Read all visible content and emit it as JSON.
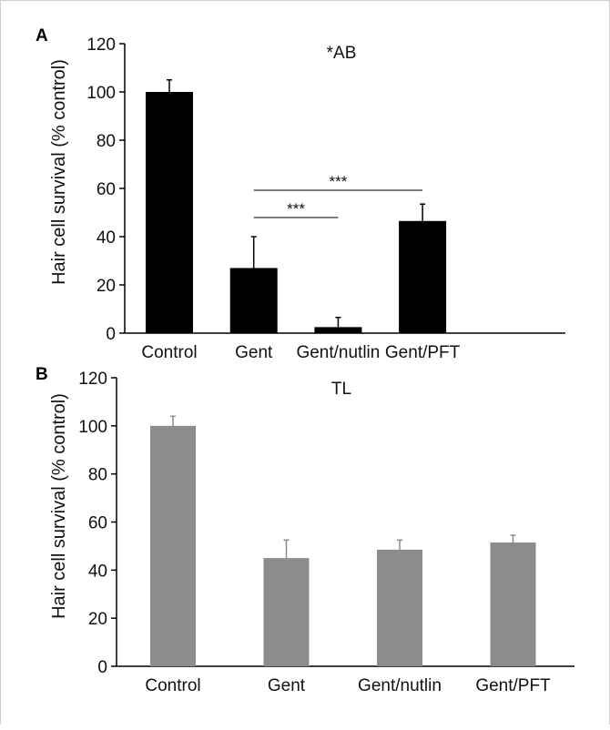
{
  "colors": {
    "panel_a_bar": "#000000",
    "panel_b_bar": "#8c8c8c",
    "panel_b_errorbar": "#8c8c8c",
    "axis": "#000000"
  },
  "chart_data": [
    {
      "panel": "A",
      "type": "bar",
      "title": "*AB",
      "ylabel": "Hair cell survival (% control)",
      "xlabel": "",
      "categories": [
        "Control",
        "Gent",
        "Gent/nutlin",
        "Gent/PFT"
      ],
      "values": [
        100,
        27,
        2.5,
        46.5
      ],
      "errors": [
        5,
        13,
        4,
        7
      ],
      "ylim": [
        0,
        120
      ],
      "yticks": [
        0,
        20,
        40,
        60,
        80,
        100,
        120
      ],
      "grid": false,
      "significance": [
        {
          "from": "Gent",
          "to": "Gent/nutlin",
          "label": "***"
        },
        {
          "from": "Gent",
          "to": "Gent/PFT",
          "label": "***"
        }
      ]
    },
    {
      "panel": "B",
      "type": "bar",
      "title": "TL",
      "ylabel": "Hair cell survival (% control)",
      "xlabel": "",
      "categories": [
        "Control",
        "Gent",
        "Gent/nutlin",
        "Gent/PFT"
      ],
      "values": [
        100,
        45,
        48.5,
        51.5
      ],
      "errors": [
        4,
        7.5,
        4,
        3
      ],
      "ylim": [
        0,
        120
      ],
      "yticks": [
        0,
        20,
        40,
        60,
        80,
        100,
        120
      ],
      "grid": false,
      "significance": []
    }
  ]
}
